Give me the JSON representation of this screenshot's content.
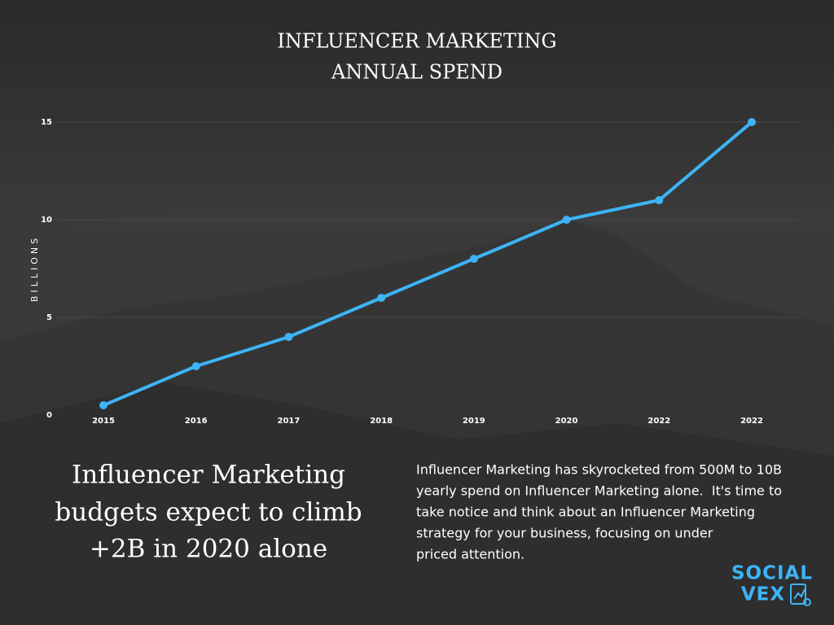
{
  "chart_data": {
    "type": "line",
    "title": [
      "INFLUENCER MARKETING",
      "ANNUAL SPEND"
    ],
    "y_label": "BILLIONS",
    "categories": [
      "2015",
      "2016",
      "2017",
      "2018",
      "2019",
      "2020",
      "2022",
      "2022"
    ],
    "values": [
      0.5,
      2.5,
      4,
      6,
      8,
      10,
      11,
      15
    ],
    "color": "#3db4f6",
    "ylim": [
      0,
      15
    ],
    "yticks": [
      0,
      5,
      10,
      15
    ],
    "grid": true
  },
  "headline": [
    "Influencer Marketing",
    "budgets expect to climb",
    "+2B in 2020 alone"
  ],
  "body": [
    "Influencer Marketing has skyrocketed from 500M to 10B",
    "yearly spend on Influencer Marketing alone.  It's time to",
    "take notice and think about an Influencer Marketing",
    "strategy for your business, focusing on under",
    "priced attention."
  ],
  "logo": [
    "SOCIAL",
    "VEX"
  ]
}
